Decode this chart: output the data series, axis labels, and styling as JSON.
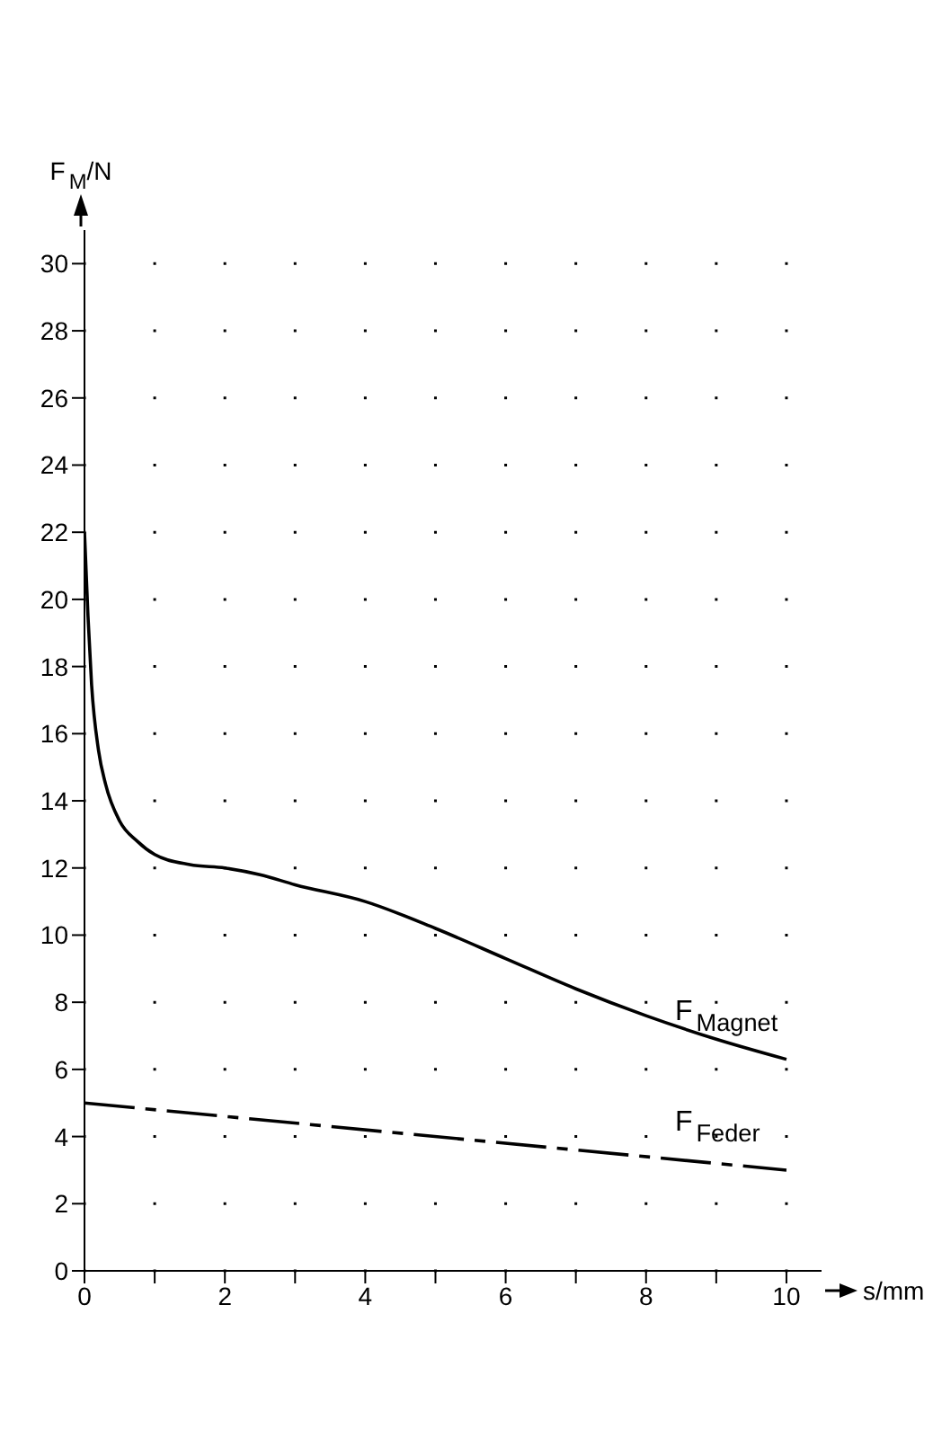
{
  "chart_data": {
    "type": "line",
    "xlabel": "s/mm",
    "ylabel": "F$_{M}$/N",
    "xlim": [
      0,
      10.5
    ],
    "xticks": [
      0,
      {
        "value": 1,
        "label": null
      },
      2,
      {
        "value": 3,
        "label": null
      },
      4,
      {
        "value": 5,
        "label": null
      },
      6,
      {
        "value": 7,
        "label": null
      },
      8,
      {
        "value": 9,
        "label": null
      },
      10
    ],
    "ylim": [
      0,
      31
    ],
    "yticks": [
      0,
      2,
      4,
      6,
      8,
      10,
      12,
      14,
      16,
      18,
      20,
      22,
      24,
      26,
      28,
      30
    ],
    "grid": true,
    "marker": "none",
    "series": [
      {
        "name": "F$_{Magnet}$",
        "color": "#000000",
        "line_style": "solid",
        "x": [
          0,
          0.05,
          0.1,
          0.2,
          0.3,
          0.5,
          0.75,
          1,
          1.5,
          2,
          2.5,
          3,
          4,
          5,
          6,
          7,
          8,
          9,
          10
        ],
        "values": [
          22,
          19.5,
          17.5,
          15.5,
          14.5,
          13.4,
          12.8,
          12.4,
          12.1,
          12,
          11.8,
          11.5,
          11,
          10.2,
          9.3,
          8.4,
          7.6,
          6.9,
          6.3
        ]
      },
      {
        "name": "F$_{Feder}$",
        "color": "#000000",
        "line_style": "dashed",
        "x": [
          0,
          10
        ],
        "values": [
          5,
          3
        ]
      }
    ]
  }
}
